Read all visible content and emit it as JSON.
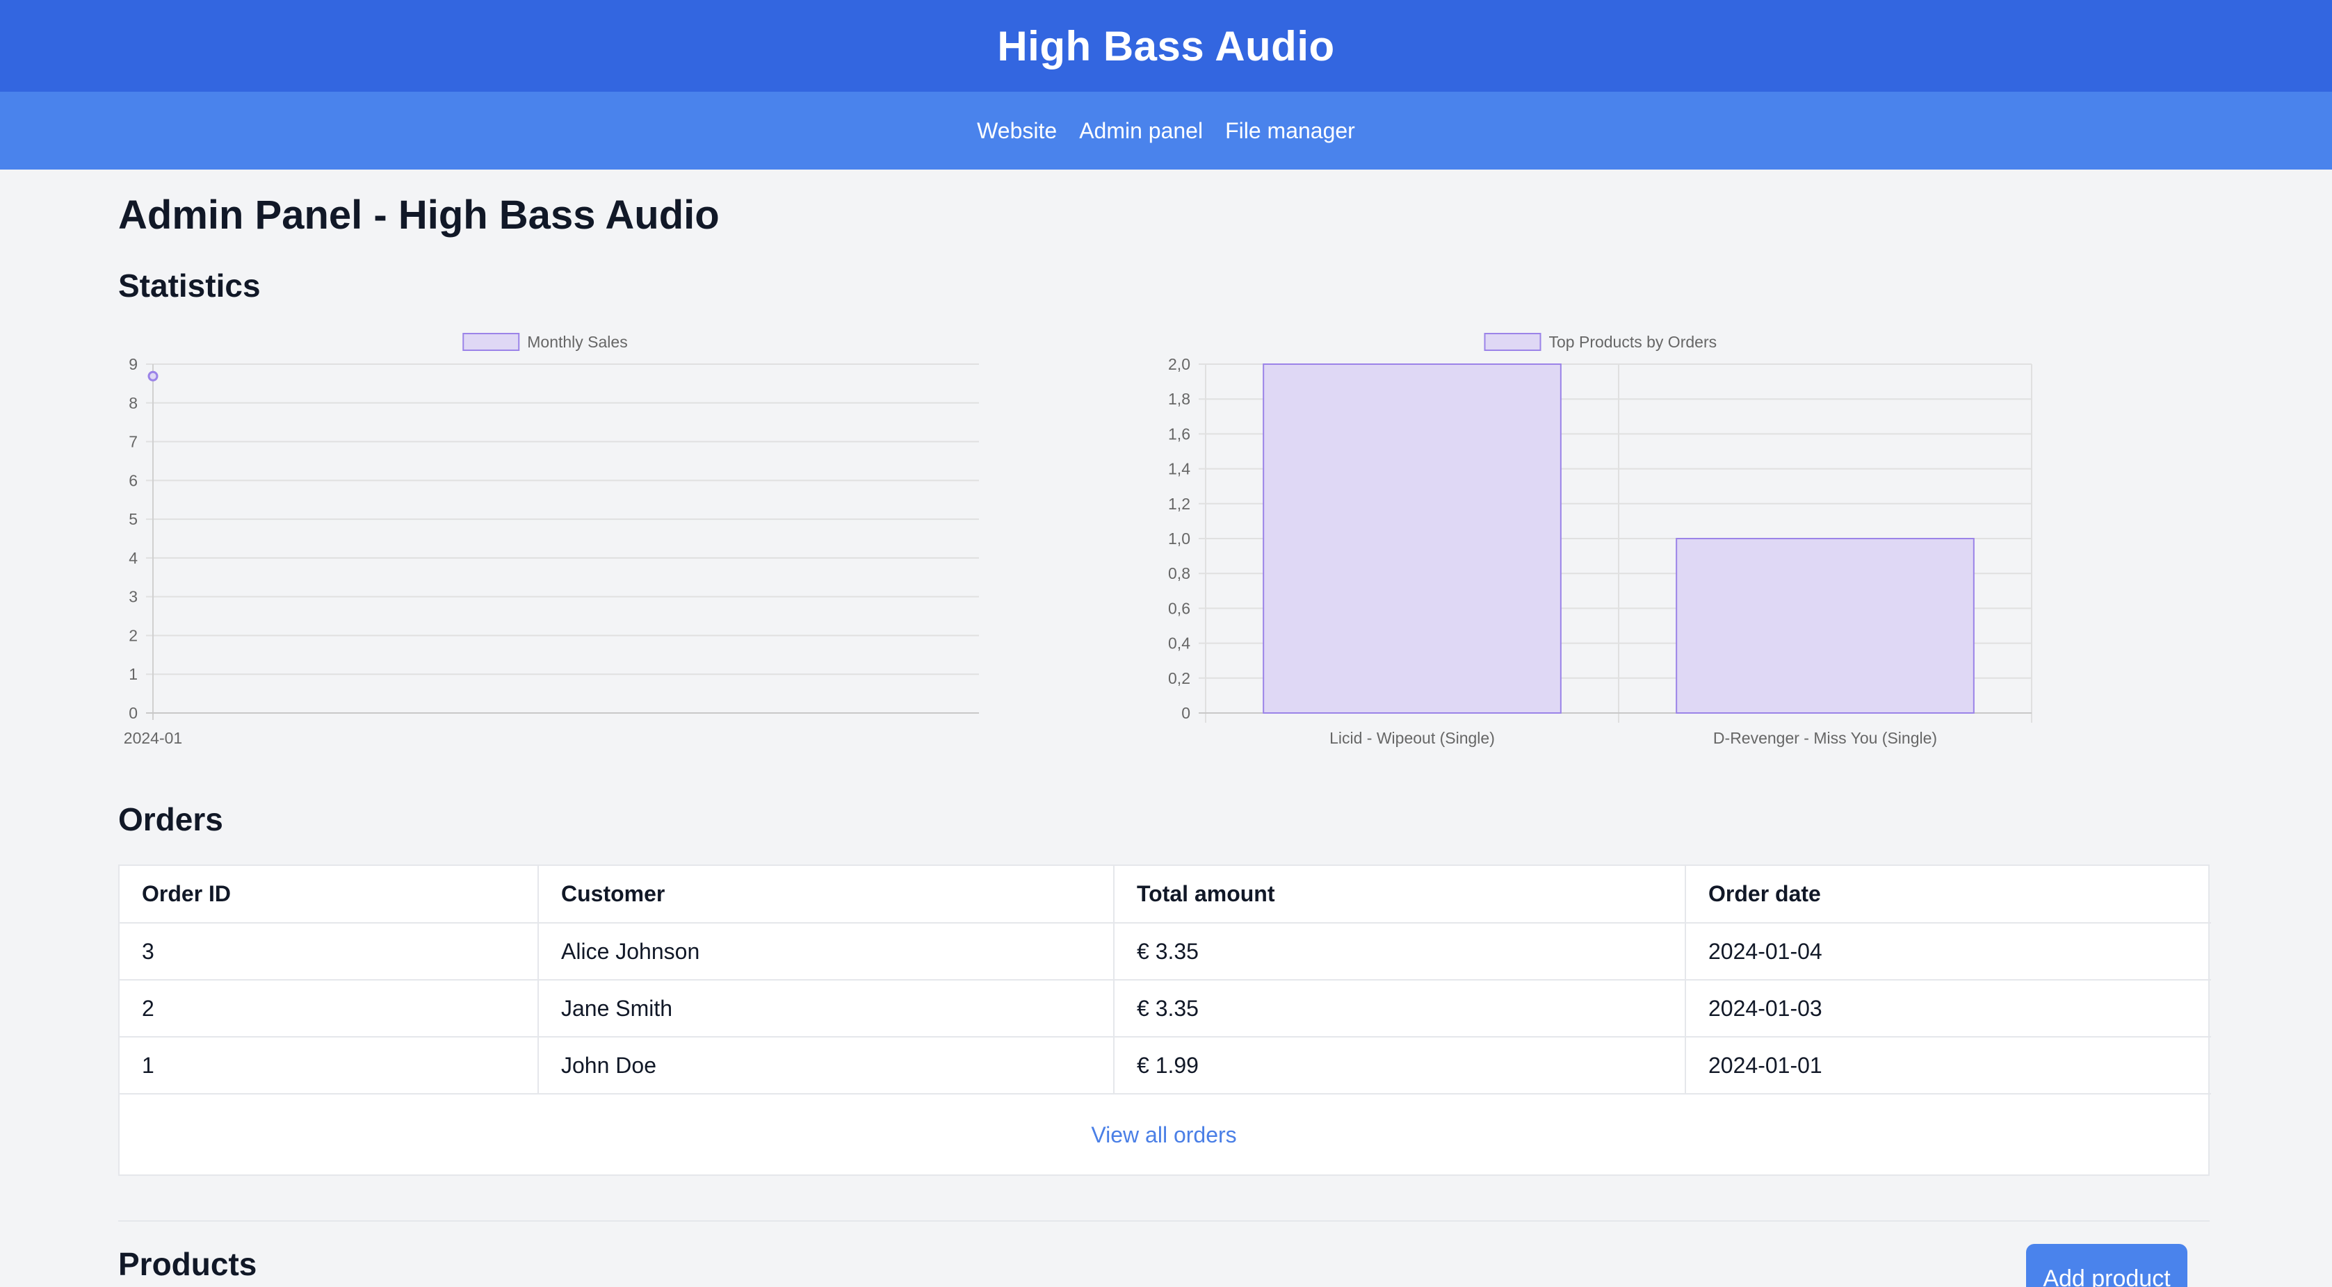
{
  "header": {
    "site_title": "High Bass Audio"
  },
  "nav": {
    "items": [
      "Website",
      "Admin panel",
      "File manager"
    ]
  },
  "page": {
    "title": "Admin Panel - High Bass Audio"
  },
  "sections": {
    "statistics": "Statistics",
    "orders": "Orders",
    "products": "Products"
  },
  "colors": {
    "header": "#3366e0",
    "nav": "#4a83ec",
    "bar_fill": "#dfd8f5",
    "bar_stroke": "#9b83e8"
  },
  "chart_data": [
    {
      "type": "line",
      "legend": "Monthly Sales",
      "categories": [
        "2024-01"
      ],
      "values": [
        8.69
      ],
      "ylim": [
        0,
        9
      ],
      "yticks": [
        0,
        1,
        2,
        3,
        4,
        5,
        6,
        7,
        8,
        9
      ],
      "legend_position": "top"
    },
    {
      "type": "bar",
      "legend": "Top Products by Orders",
      "categories": [
        "Licid - Wipeout (Single)",
        "D-Revenger - Miss You (Single)"
      ],
      "values": [
        2,
        1
      ],
      "ylim": [
        0,
        2
      ],
      "yticks": [
        "0",
        "0,2",
        "0,4",
        "0,6",
        "0,8",
        "1,0",
        "1,2",
        "1,4",
        "1,6",
        "1,8",
        "2,0"
      ],
      "legend_position": "top"
    }
  ],
  "orders": {
    "headers": [
      "Order ID",
      "Customer",
      "Total amount",
      "Order date"
    ],
    "rows": [
      [
        "3",
        "Alice Johnson",
        "€ 3.35",
        "2024-01-04"
      ],
      [
        "2",
        "Jane Smith",
        "€ 3.35",
        "2024-01-03"
      ],
      [
        "1",
        "John Doe",
        "€ 1.99",
        "2024-01-01"
      ]
    ],
    "view_all": "View all orders"
  },
  "products": {
    "add_label": "Add product"
  }
}
